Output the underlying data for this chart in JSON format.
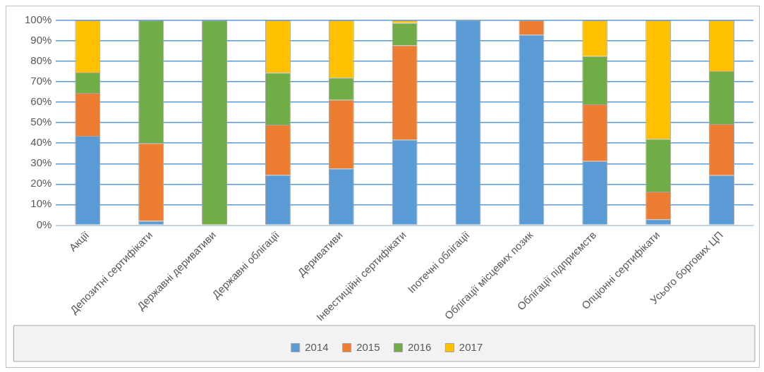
{
  "chart_data": {
    "type": "bar",
    "stacked": true,
    "categories": [
      "Акції",
      "Депозитні сертифікати",
      "Державні деривативи",
      "Державні облігації",
      "Деривативи",
      "Інвестиційні сертифікати",
      "Іпотечні облігації",
      "Облігації місцевих позик",
      "Облігації підприємств",
      "Опціонні сертифікати",
      "Усього боргових ЦП"
    ],
    "series": [
      {
        "name": "2014",
        "color": "#5b9bd5",
        "values": [
          43.5,
          2,
          0,
          24.5,
          27.6,
          41.7,
          100,
          93,
          31.2,
          2.8,
          24.3
        ]
      },
      {
        "name": "2015",
        "color": "#ed7d31",
        "values": [
          21,
          38,
          0,
          24.5,
          33.6,
          46.2,
          0,
          7,
          27.8,
          13.5,
          25.1
        ]
      },
      {
        "name": "2016",
        "color": "#70ad47",
        "values": [
          10,
          60,
          100,
          25.4,
          10.8,
          10.9,
          0,
          0,
          23.5,
          25.8,
          25.8
        ]
      },
      {
        "name": "2017",
        "color": "#ffc000",
        "values": [
          25.5,
          0,
          0,
          25.6,
          28,
          1.2,
          0,
          0,
          17.5,
          57.9,
          24.8
        ]
      }
    ],
    "ylim": [
      0,
      100
    ],
    "yticks": [
      {
        "value": 0,
        "label": "0%"
      },
      {
        "value": 10,
        "label": "10%"
      },
      {
        "value": 20,
        "label": "20%"
      },
      {
        "value": 30,
        "label": "30%"
      },
      {
        "value": 40,
        "label": "40%"
      },
      {
        "value": 50,
        "label": "50%"
      },
      {
        "value": 60,
        "label": "60%"
      },
      {
        "value": 70,
        "label": "70%"
      },
      {
        "value": 80,
        "label": "80%"
      },
      {
        "value": 90,
        "label": "90%"
      },
      {
        "value": 100,
        "label": "100%"
      }
    ],
    "grid": "y",
    "legend": "bottom"
  }
}
